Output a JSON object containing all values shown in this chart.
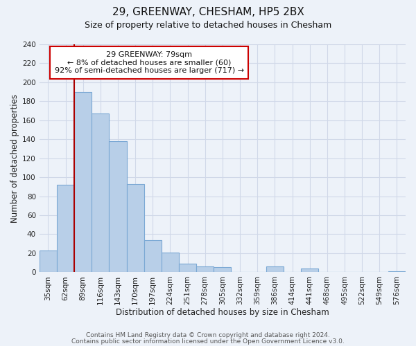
{
  "title": "29, GREENWAY, CHESHAM, HP5 2BX",
  "subtitle": "Size of property relative to detached houses in Chesham",
  "xlabel": "Distribution of detached houses by size in Chesham",
  "ylabel": "Number of detached properties",
  "bar_labels": [
    "35sqm",
    "62sqm",
    "89sqm",
    "116sqm",
    "143sqm",
    "170sqm",
    "197sqm",
    "224sqm",
    "251sqm",
    "278sqm",
    "305sqm",
    "332sqm",
    "359sqm",
    "386sqm",
    "414sqm",
    "441sqm",
    "468sqm",
    "495sqm",
    "522sqm",
    "549sqm",
    "576sqm"
  ],
  "bar_values": [
    23,
    92,
    190,
    167,
    138,
    93,
    34,
    21,
    9,
    6,
    5,
    0,
    0,
    6,
    0,
    4,
    0,
    0,
    0,
    0,
    1
  ],
  "bar_color": "#b8cfe8",
  "bar_edge_color": "#7aa8d4",
  "vline_color": "#aa0000",
  "annotation_text": "29 GREENWAY: 79sqm\n← 8% of detached houses are smaller (60)\n92% of semi-detached houses are larger (717) →",
  "annotation_box_color": "#ffffff",
  "annotation_box_edge": "#cc0000",
  "ylim": [
    0,
    240
  ],
  "yticks": [
    0,
    20,
    40,
    60,
    80,
    100,
    120,
    140,
    160,
    180,
    200,
    220,
    240
  ],
  "footer1": "Contains HM Land Registry data © Crown copyright and database right 2024.",
  "footer2": "Contains public sector information licensed under the Open Government Licence v3.0.",
  "bg_color": "#edf2f9",
  "plot_bg_color": "#edf2f9",
  "grid_color": "#d0d8e8",
  "title_fontsize": 11,
  "subtitle_fontsize": 9,
  "axis_label_fontsize": 8.5,
  "tick_fontsize": 7.5,
  "annotation_fontsize": 8,
  "footer_fontsize": 6.5
}
